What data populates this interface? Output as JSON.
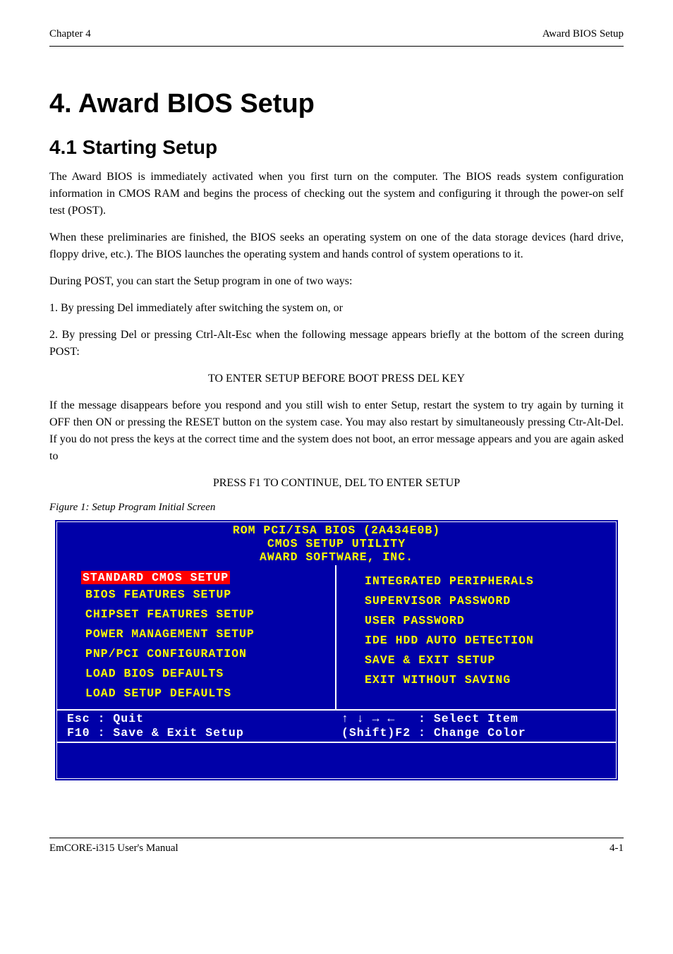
{
  "header": {
    "left": "Chapter 4",
    "right": "Award BIOS Setup"
  },
  "section_number": "4.",
  "section_title": "Award BIOS Setup",
  "subsection_number": "4.1",
  "subsection_title": "Starting Setup",
  "paragraphs": {
    "p1": "The Award BIOS is immediately activated when you first turn on the computer. The BIOS reads system configuration information in CMOS RAM and begins the process of checking out the system and configuring it through the power-on self test (POST).",
    "p2": "When these preliminaries are finished, the BIOS seeks an operating system on one of the data storage devices (hard drive, floppy drive, etc.). The BIOS launches the operating system and hands control of system operations to it.",
    "p3": "During POST, you can start the Setup program in one of two ways:",
    "p4": "1. By pressing Del immediately after switching the system on, or",
    "p5a": "2. By pressing Del or pressing Ctrl-Alt-Esc when the following message appears briefly at the bottom of the screen during POST:",
    "p5b": "TO ENTER SETUP BEFORE BOOT PRESS DEL KEY",
    "p6": "If the message disappears before you respond and you still wish to enter Setup, restart the system to try again by turning it OFF then ON or pressing the RESET button on the system case. You may also restart by simultaneously pressing Ctr-Alt-Del. If you do not press the keys at the correct time and the system does not boot, an error message appears and you are again asked to",
    "p7": "PRESS F1 TO CONTINUE, DEL TO ENTER SETUP",
    "figcap": "Figure 1: Setup Program Initial Screen"
  },
  "bios": {
    "bg_color": "#0000a8",
    "fg_menu_color": "#ffff00",
    "fg_hint_color": "#ffffff",
    "border_color": "#ffffff",
    "sel_bg": "#ff0000",
    "sel_fg": "#ffffff",
    "header_lines": [
      "ROM PCI/ISA BIOS (2A434E0B)",
      "CMOS SETUP UTILITY",
      "AWARD SOFTWARE, INC."
    ],
    "left_items": [
      "STANDARD CMOS SETUP",
      "BIOS FEATURES SETUP",
      "CHIPSET FEATURES SETUP",
      "POWER MANAGEMENT SETUP",
      "PNP/PCI CONFIGURATION",
      "LOAD BIOS DEFAULTS",
      "LOAD SETUP DEFAULTS"
    ],
    "right_items": [
      "INTEGRATED PERIPHERALS",
      "SUPERVISOR PASSWORD",
      "USER PASSWORD",
      "IDE HDD AUTO DETECTION",
      "SAVE & EXIT SETUP",
      "EXIT WITHOUT SAVING"
    ],
    "selected_index": 0,
    "hints": {
      "left": [
        "Esc : Quit",
        "F10 : Save & Exit Setup"
      ],
      "right": [
        "↑ ↓ → ←   : Select Item",
        "(Shift)F2 : Change Color"
      ]
    }
  },
  "footer": {
    "left": "EmCORE-i315 User's Manual",
    "right": "4-1"
  }
}
